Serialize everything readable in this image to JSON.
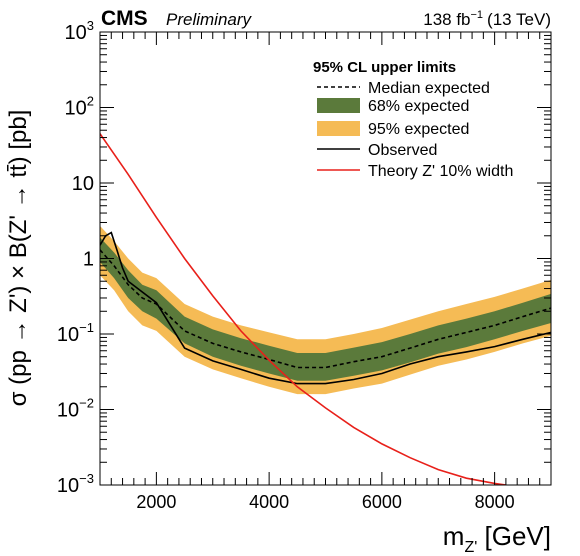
{
  "header": {
    "experiment": "CMS",
    "status": "Preliminary",
    "lumi_value": "138 fb",
    "lumi_exp": "−1",
    "energy": "(13 TeV)"
  },
  "chart_data": {
    "type": "line",
    "title": "",
    "ylabel": "σ (pp → Z') × B(Z' → tt̄) [pb]",
    "xlabel": "m_{Z'} [GeV]",
    "xlim": [
      1000,
      9000
    ],
    "ylim": [
      0.001,
      1000
    ],
    "y_scale": "log",
    "grid": false,
    "x_ticks": [
      2000,
      4000,
      6000,
      8000
    ],
    "x_tick_labels": [
      "2000",
      "4000",
      "6000",
      "8000"
    ],
    "y_ticks": [
      0.001,
      0.01,
      0.1,
      1,
      10,
      100,
      1000
    ],
    "y_tick_labels": [
      {
        "base": "10",
        "exp": "−3"
      },
      {
        "base": "10",
        "exp": "−2"
      },
      {
        "base": "10",
        "exp": "−1"
      },
      {
        "base": "1",
        "exp": ""
      },
      {
        "base": "10",
        "exp": ""
      },
      {
        "base": "10",
        "exp": "2"
      },
      {
        "base": "10",
        "exp": "3"
      }
    ],
    "legend": {
      "title": "95% CL upper limits",
      "position": "top-right",
      "entries": [
        {
          "label": "Median expected",
          "style": "dashed-line"
        },
        {
          "label": "68% expected",
          "style": "band-68"
        },
        {
          "label": "95% expected",
          "style": "band-95"
        },
        {
          "label": "Observed",
          "style": "solid-line"
        },
        {
          "label": "Theory Z' 10% width",
          "style": "red-line"
        }
      ]
    },
    "colors": {
      "band_68": "#5b7a3b",
      "band_95": "#f5bb55",
      "theory": "#e8201a",
      "median": "#000000",
      "observed": "#000000"
    },
    "x": [
      1000,
      1250,
      1500,
      1750,
      2000,
      2500,
      3000,
      3500,
      4000,
      4500,
      5000,
      5500,
      6000,
      6500,
      7000,
      7500,
      8000,
      8500,
      9000
    ],
    "series": [
      {
        "name": "Median expected",
        "role": "median",
        "values": [
          1.3,
          0.8,
          0.45,
          0.3,
          0.25,
          0.11,
          0.075,
          0.058,
          0.046,
          0.036,
          0.036,
          0.043,
          0.05,
          0.065,
          0.085,
          0.105,
          0.13,
          0.17,
          0.22
        ]
      },
      {
        "name": "68% expected",
        "role": "band68",
        "lower": [
          0.9,
          0.55,
          0.3,
          0.2,
          0.16,
          0.075,
          0.05,
          0.038,
          0.03,
          0.024,
          0.024,
          0.028,
          0.033,
          0.042,
          0.055,
          0.067,
          0.085,
          0.11,
          0.14
        ],
        "upper": [
          1.9,
          1.2,
          0.7,
          0.45,
          0.38,
          0.17,
          0.115,
          0.088,
          0.07,
          0.056,
          0.056,
          0.066,
          0.078,
          0.1,
          0.13,
          0.16,
          0.2,
          0.26,
          0.34
        ]
      },
      {
        "name": "95% expected",
        "role": "band95",
        "lower": [
          0.6,
          0.38,
          0.2,
          0.13,
          0.11,
          0.05,
          0.034,
          0.026,
          0.02,
          0.016,
          0.016,
          0.019,
          0.022,
          0.029,
          0.038,
          0.046,
          0.058,
          0.075,
          0.095
        ],
        "upper": [
          2.7,
          1.7,
          1.0,
          0.65,
          0.55,
          0.25,
          0.17,
          0.13,
          0.105,
          0.085,
          0.085,
          0.1,
          0.12,
          0.155,
          0.2,
          0.25,
          0.31,
          0.4,
          0.52
        ]
      },
      {
        "name": "Observed",
        "role": "observed",
        "x": [
          1000,
          1100,
          1200,
          1300,
          1400,
          1500,
          1750,
          2000,
          2500,
          3000,
          3500,
          4000,
          4500,
          5000,
          5500,
          6000,
          6500,
          7000,
          7500,
          8000,
          8500,
          9000
        ],
        "values": [
          1.5,
          2.0,
          2.2,
          1.3,
          0.75,
          0.5,
          0.36,
          0.26,
          0.065,
          0.044,
          0.034,
          0.026,
          0.022,
          0.022,
          0.025,
          0.03,
          0.04,
          0.05,
          0.058,
          0.068,
          0.085,
          0.105
        ]
      },
      {
        "name": "Theory Z' 10% width",
        "role": "theory",
        "x": [
          1000,
          1500,
          2000,
          2500,
          3000,
          3500,
          4000,
          4500,
          5000,
          5500,
          6000,
          6500,
          7000,
          7500,
          8000,
          8200
        ],
        "values": [
          45,
          13,
          3.5,
          1.0,
          0.32,
          0.11,
          0.045,
          0.02,
          0.0105,
          0.0058,
          0.0035,
          0.0023,
          0.0016,
          0.00123,
          0.00105,
          0.001
        ]
      }
    ]
  }
}
